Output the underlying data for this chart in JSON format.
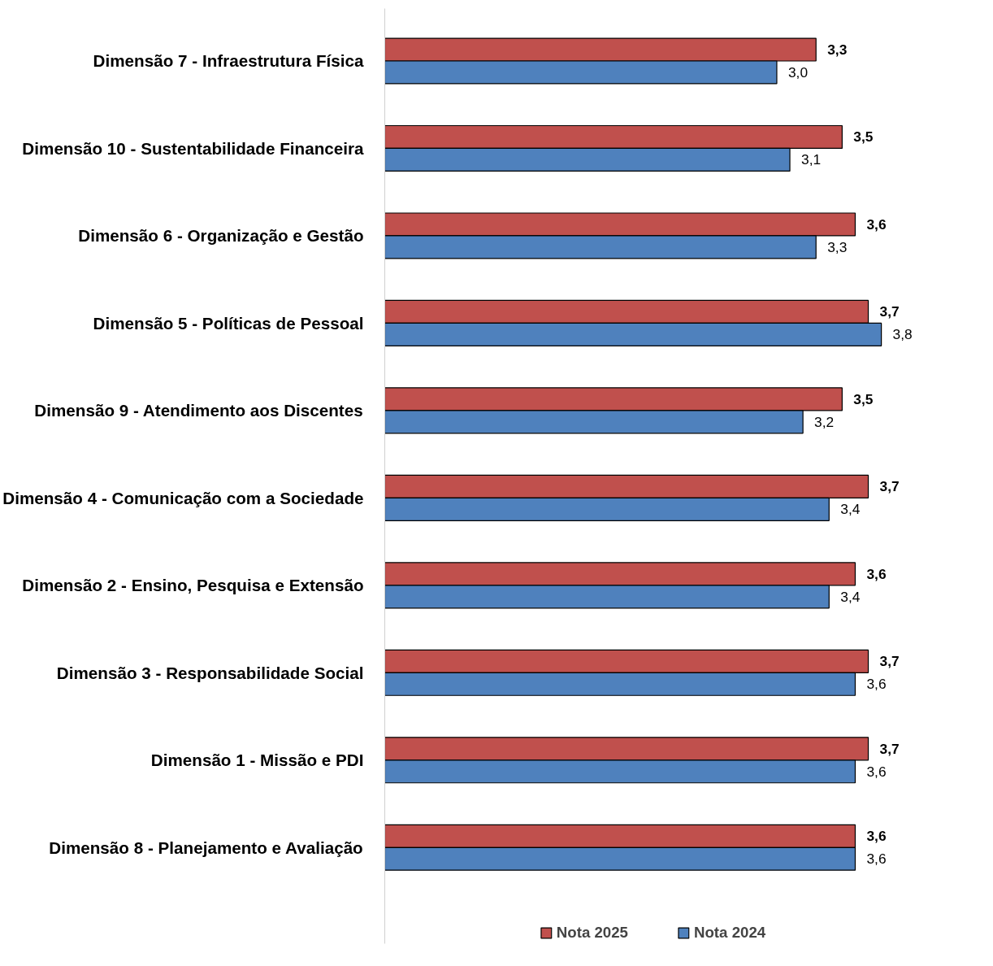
{
  "chart_data": {
    "type": "bar",
    "orientation": "horizontal",
    "categories": [
      "Dimensão 7 - Infraestrutura Física",
      "Dimensão 10 - Sustentabilidade Financeira",
      "Dimensão 6 - Organização e Gestão",
      "Dimensão 5 - Políticas de Pessoal",
      "Dimensão 9 - Atendimento aos Discentes",
      "Dimensão 4 - Comunicação com a Sociedade",
      "Dimensão 2 - Ensino, Pesquisa e Extensão",
      "Dimensão 3 - Responsabilidade Social",
      "Dimensão 1 - Missão e PDI",
      "Dimensão 8 - Planejamento e Avaliação"
    ],
    "series": [
      {
        "name": "Nota 2025",
        "color": "#c0504d",
        "values": [
          3.3,
          3.5,
          3.6,
          3.7,
          3.5,
          3.7,
          3.6,
          3.7,
          3.7,
          3.6
        ],
        "value_labels": [
          "3,3",
          "3,5",
          "3,6",
          "3,7",
          "3,5",
          "3,7",
          "3,6",
          "3,7",
          "3,7",
          "3,6"
        ]
      },
      {
        "name": "Nota 2024",
        "color": "#4f81bd",
        "values": [
          3.0,
          3.1,
          3.3,
          3.8,
          3.2,
          3.4,
          3.4,
          3.6,
          3.6,
          3.6
        ],
        "value_labels": [
          "3,0",
          "3,1",
          "3,3",
          "3,8",
          "3,2",
          "3,4",
          "3,4",
          "3,6",
          "3,6",
          "3,6"
        ]
      }
    ],
    "legend": "bottom",
    "grid": false,
    "tick_labels": "y"
  }
}
